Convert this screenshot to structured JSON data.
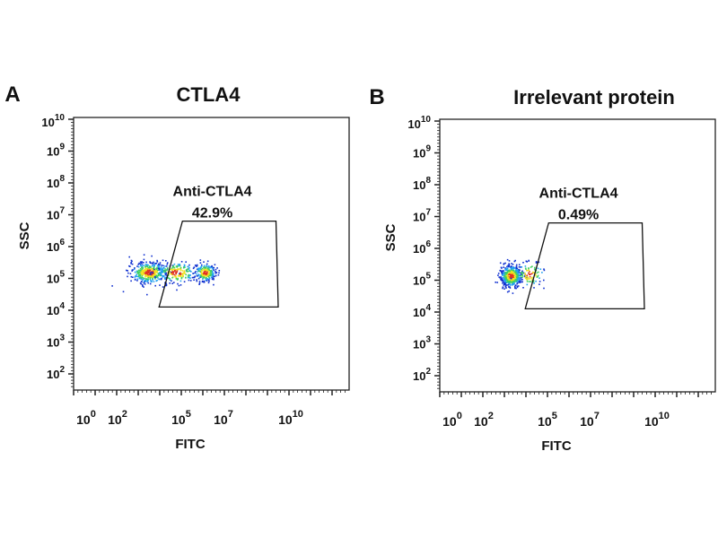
{
  "chart_data": [
    {
      "type": "scatter",
      "panel_letter": "A",
      "title": "CTLA4",
      "xlabel": "FITC",
      "ylabel": "SSC",
      "x_scale": "log",
      "y_scale": "log",
      "x_tick_base": "10",
      "x_tick_exponents": [
        "0",
        "2",
        "5",
        "7",
        "10"
      ],
      "y_tick_base": "10",
      "y_tick_exponents": [
        "2",
        "3",
        "4",
        "5",
        "6",
        "7",
        "8",
        "9",
        "10"
      ],
      "gate": {
        "name": "Anti-CTLA4",
        "percent": "42.9%",
        "polygon_log10": [
          [
            3.7,
            4.1
          ],
          [
            4.8,
            6.8
          ],
          [
            9.1,
            6.8
          ],
          [
            9.2,
            4.1
          ]
        ]
      },
      "populations_log10": [
        {
          "x": 3.2,
          "y": 5.2,
          "sx": 0.45,
          "sy": 0.17,
          "n": 420
        },
        {
          "x": 4.5,
          "y": 5.2,
          "sx": 0.5,
          "sy": 0.17,
          "n": 200
        },
        {
          "x": 5.85,
          "y": 5.2,
          "sx": 0.25,
          "sy": 0.14,
          "n": 220
        }
      ]
    },
    {
      "type": "scatter",
      "panel_letter": "B",
      "title": "Irrelevant protein",
      "xlabel": "FITC",
      "ylabel": "SSC",
      "x_scale": "log",
      "y_scale": "log",
      "x_tick_base": "10",
      "x_tick_exponents": [
        "0",
        "2",
        "5",
        "7",
        "10"
      ],
      "y_tick_base": "10",
      "y_tick_exponents": [
        "2",
        "3",
        "4",
        "5",
        "6",
        "7",
        "8",
        "9",
        "10"
      ],
      "gate": {
        "name": "Anti-CTLA4",
        "percent": "0.49%",
        "polygon_log10": [
          [
            3.7,
            4.1
          ],
          [
            4.8,
            6.8
          ],
          [
            9.1,
            6.8
          ],
          [
            9.2,
            4.1
          ]
        ]
      },
      "populations_log10": [
        {
          "x": 3.0,
          "y": 5.15,
          "sx": 0.25,
          "sy": 0.17,
          "n": 500
        },
        {
          "x": 3.9,
          "y": 5.2,
          "sx": 0.35,
          "sy": 0.2,
          "n": 90
        }
      ]
    }
  ]
}
